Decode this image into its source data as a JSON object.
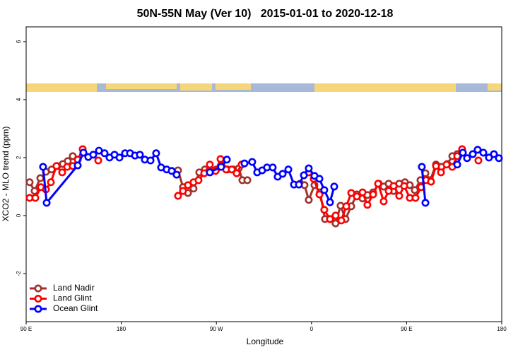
{
  "chart_data": {
    "type": "line",
    "title": "50N-55N May (Ver 10)   2015-01-01 to 2020-12-18",
    "xlabel": "Longitude",
    "ylabel": "XCO2 - MLO trend (ppm)",
    "xlim": [
      90,
      540
    ],
    "ylim": [
      -3.66,
      6.51
    ],
    "xticks": [
      {
        "value": 90,
        "label": "90 E"
      },
      180,
      {
        "value": 270,
        "label": "90 W"
      },
      {
        "value": 360,
        "label": "0"
      },
      {
        "value": 450,
        "label": "90 E"
      },
      {
        "value": 540,
        "label": "180"
      }
    ],
    "yticks": [
      -2,
      0,
      2,
      4,
      6
    ],
    "legend": "lower left",
    "series": [
      {
        "name": "Land Nadir",
        "color": "#a0322d",
        "x": [
          93.3,
          98.0,
          103.4,
          108.7,
          114.1,
          119.4,
          124.8,
          129.4,
          134.1,
          null,
          233.7,
          238.4,
          243.1,
          248.4,
          253.8,
          259.1,
          264.5,
          269.9,
          275.2,
          280.6,
          285.9,
          291.2,
          294.6,
          299.3,
          null,
          349.4,
          353.4,
          357.4,
          362.8,
          368.1,
          372.8,
          378.2,
          382.8,
          387.5,
          392.2,
          397.6,
          402.9,
          408.3,
          412.9,
          418.3,
          423.6,
          428.3,
          433.0,
          437.7,
          443.0,
          448.4,
          453.0,
          457.7,
          463.1,
          467.8,
          472.4,
          477.8,
          483.1,
          488.5,
          493.2,
          497.9
        ],
        "values": [
          1.15,
          0.85,
          1.29,
          1.51,
          1.59,
          1.71,
          1.78,
          1.88,
          2.05,
          null,
          1.56,
          0.98,
          0.78,
          0.93,
          1.49,
          1.59,
          1.51,
          1.59,
          1.85,
          1.59,
          1.59,
          1.63,
          1.22,
          1.22,
          null,
          1.1,
          1.05,
          0.54,
          1.05,
          0.8,
          -0.12,
          -0.12,
          -0.27,
          0.34,
          -0.12,
          0.32,
          0.73,
          0.59,
          0.71,
          0.8,
          1.1,
          1.0,
          1.1,
          0.85,
          1.1,
          1.15,
          1.05,
          0.88,
          1.22,
          1.46,
          1.22,
          1.76,
          1.68,
          1.78,
          2.05,
          2.12
        ]
      },
      {
        "name": "Land Glint",
        "color": "#ff0000",
        "x": [
          93.3,
          98.7,
          104.0,
          108.7,
          113.4,
          118.7,
          124.1,
          128.8,
          134.1,
          138.8,
          143.5,
          null,
          158.2,
          null,
          233.7,
          238.4,
          243.1,
          248.4,
          253.1,
          258.5,
          263.8,
          269.2,
          273.9,
          279.2,
          284.6,
          289.2,
          293.9,
          null,
          357.4,
          362.1,
          367.5,
          372.1,
          377.5,
          382.8,
          388.2,
          392.9,
          397.6,
          402.9,
          408.3,
          412.9,
          418.3,
          423.0,
          428.3,
          433.0,
          437.7,
          443.0,
          447.7,
          453.0,
          458.4,
          463.7,
          468.4,
          473.1,
          477.8,
          482.5,
          487.8,
          493.2,
          497.9,
          502.5,
          null,
          517.9
        ],
        "values": [
          0.61,
          0.61,
          0.98,
          0.9,
          1.15,
          1.71,
          1.49,
          1.68,
          1.71,
          1.93,
          2.29,
          null,
          1.9,
          null,
          0.68,
          0.85,
          1.05,
          1.15,
          1.22,
          1.46,
          1.76,
          1.54,
          1.95,
          1.59,
          1.59,
          1.46,
          1.76,
          null,
          1.49,
          1.27,
          0.73,
          0.2,
          -0.12,
          0.0,
          -0.17,
          0.32,
          0.78,
          0.66,
          0.8,
          0.37,
          0.73,
          1.1,
          0.49,
          0.85,
          1.02,
          0.68,
          1.02,
          0.61,
          0.61,
          0.98,
          1.22,
          1.17,
          1.71,
          1.49,
          1.76,
          1.68,
          2.05,
          2.29,
          null,
          1.9
        ]
      },
      {
        "name": "Ocean Glint",
        "color": "#0000ff",
        "x": [
          106.0,
          109.4,
          138.8,
          144.2,
          148.8,
          153.5,
          158.9,
          164.2,
          168.9,
          173.6,
          178.3,
          183.6,
          188.3,
          193.0,
          197.6,
          202.3,
          207.7,
          213.0,
          217.7,
          223.0,
          227.7,
          232.4,
          null,
          263.8,
          274.5,
          279.9,
          null,
          296.6,
          303.9,
          308.6,
          313.3,
          317.9,
          323.3,
          328.0,
          332.7,
          338.1,
          343.4,
          348.1,
          352.8,
          357.4,
          362.8,
          367.5,
          372.1,
          377.5,
          381.5,
          null,
          464.4,
          467.8,
          null,
          497.9,
          503.2,
          507.2,
          512.6,
          517.2,
          522.6,
          527.9,
          532.6,
          537.3
        ],
        "values": [
          1.68,
          0.44,
          1.73,
          2.17,
          2.02,
          2.1,
          2.24,
          2.15,
          2.0,
          2.1,
          2.0,
          2.15,
          2.15,
          2.07,
          2.1,
          1.93,
          1.9,
          2.15,
          1.66,
          1.59,
          1.54,
          1.41,
          null,
          1.49,
          1.68,
          1.93,
          null,
          1.8,
          1.85,
          1.49,
          1.56,
          1.66,
          1.66,
          1.34,
          1.44,
          1.59,
          1.07,
          1.07,
          1.39,
          1.63,
          1.37,
          1.27,
          0.88,
          0.46,
          1.0,
          null,
          1.68,
          0.44,
          null,
          1.76,
          2.17,
          1.98,
          2.12,
          2.27,
          2.17,
          2.0,
          2.12,
          1.98
        ]
      }
    ]
  }
}
